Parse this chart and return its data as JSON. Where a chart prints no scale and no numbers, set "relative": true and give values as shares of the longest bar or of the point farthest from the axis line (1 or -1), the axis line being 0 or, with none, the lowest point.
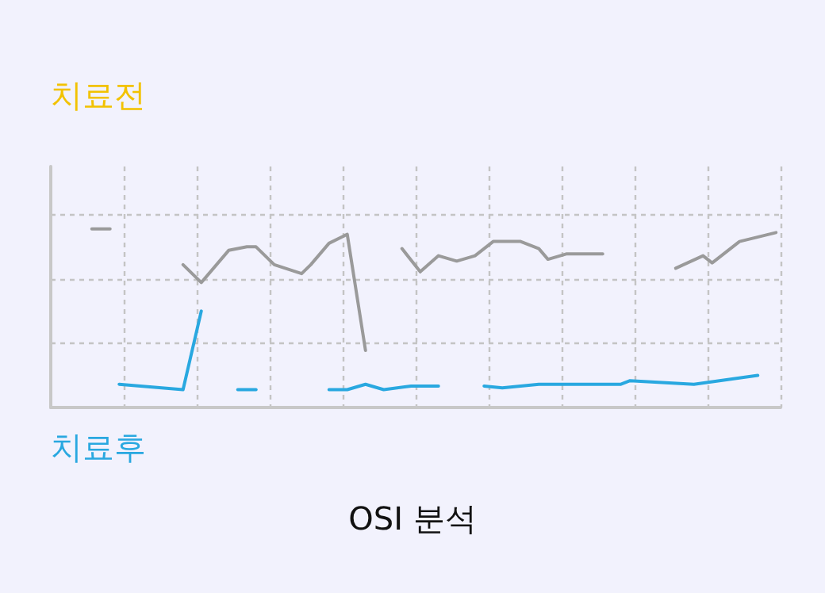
{
  "chart_data": {
    "type": "line",
    "title": "OSI 분석",
    "relative": true,
    "grid": true,
    "line_style": "solid",
    "annotations": [
      "치료전",
      "치료후"
    ],
    "categories": [
      null,
      null,
      null,
      null,
      null,
      null,
      null,
      null,
      null,
      null,
      null,
      null,
      null,
      null,
      null,
      null,
      null,
      null,
      null,
      null,
      null,
      null,
      null,
      null,
      null,
      null,
      null,
      null,
      null,
      null,
      null,
      null,
      null,
      null,
      null,
      null,
      null,
      null,
      null,
      null,
      null,
      null,
      null,
      null,
      null,
      null,
      null,
      null,
      null,
      null,
      null,
      null,
      null,
      null,
      null,
      null,
      null,
      null,
      null,
      null,
      null,
      null,
      null,
      null,
      null,
      null,
      null,
      null,
      null,
      null,
      null,
      null,
      null,
      null,
      null,
      null,
      null,
      null,
      null,
      null
    ],
    "series": [
      {
        "color": "#9a9a9a",
        "values": [
          null,
          null,
          null,
          null,
          1,
          null,
          1,
          null,
          null,
          null,
          null,
          null,
          null,
          null,
          null,
          null,
          null,
          null,
          null,
          null,
          null,
          null,
          null,
          null,
          null,
          null,
          null,
          null,
          null,
          null,
          null,
          null,
          null,
          null,
          null,
          null,
          null,
          null,
          null,
          null,
          null,
          null,
          null,
          null,
          null,
          null,
          null,
          null,
          null,
          null,
          null,
          null,
          null,
          null,
          null,
          null,
          null,
          null,
          null,
          null,
          null,
          null,
          null,
          null,
          null,
          null,
          null,
          null,
          null,
          null,
          null,
          null,
          null,
          null,
          null,
          null,
          null,
          null,
          null,
          null
        ]
      },
      {
        "color": "#9a9a9a",
        "values": [
          null,
          null,
          null,
          null,
          null,
          null,
          null,
          null,
          null,
          null,
          null,
          null,
          null,
          null,
          0.8,
          null,
          0.7,
          null,
          null,
          0.88,
          null,
          0.9,
          0.9,
          null,
          0.8,
          null,
          null,
          0.75,
          0.8,
          null,
          0.92,
          null,
          0.97,
          null,
          0.32,
          null,
          null,
          null,
          null,
          null,
          null,
          null,
          null,
          null,
          null,
          null,
          null,
          null,
          null,
          null,
          null,
          null,
          null,
          null,
          null,
          null,
          null,
          null,
          null,
          null,
          null,
          null,
          null,
          null,
          null,
          null,
          null,
          null,
          null,
          null,
          null,
          null,
          null,
          null,
          null,
          null,
          null,
          null,
          null,
          null
        ]
      },
      {
        "color": "#9a9a9a",
        "values": [
          null,
          null,
          null,
          null,
          null,
          null,
          null,
          null,
          null,
          null,
          null,
          null,
          null,
          null,
          null,
          null,
          null,
          null,
          null,
          null,
          null,
          null,
          null,
          null,
          null,
          null,
          null,
          null,
          null,
          null,
          null,
          null,
          null,
          null,
          null,
          null,
          null,
          null,
          0.89,
          null,
          0.76,
          null,
          0.85,
          null,
          0.82,
          null,
          0.85,
          null,
          0.93,
          null,
          null,
          0.93,
          null,
          0.89,
          0.83,
          null,
          0.86,
          null,
          null,
          null,
          0.86,
          null,
          null,
          null,
          null,
          null,
          null,
          null,
          null,
          null,
          null,
          null,
          null,
          null,
          null,
          null,
          null,
          null,
          null,
          null
        ]
      },
      {
        "color": "#9a9a9a",
        "values": [
          null,
          null,
          null,
          null,
          null,
          null,
          null,
          null,
          null,
          null,
          null,
          null,
          null,
          null,
          null,
          null,
          null,
          null,
          null,
          null,
          null,
          null,
          null,
          null,
          null,
          null,
          null,
          null,
          null,
          null,
          null,
          null,
          null,
          null,
          null,
          null,
          null,
          null,
          null,
          null,
          null,
          null,
          null,
          null,
          null,
          null,
          null,
          null,
          null,
          null,
          null,
          null,
          null,
          null,
          null,
          null,
          null,
          null,
          null,
          null,
          null,
          null,
          null,
          null,
          null,
          null,
          null,
          null,
          0.78,
          null,
          null,
          0.85,
          0.81,
          null,
          null,
          0.93,
          null,
          null,
          null,
          0.98
        ]
      },
      {
        "color": "#29a8e0",
        "values": [
          null,
          null,
          null,
          null,
          null,
          null,
          null,
          0.13,
          null,
          null,
          null,
          null,
          null,
          null,
          0.1,
          null,
          0.54,
          null,
          null,
          null,
          null,
          null,
          null,
          null,
          null,
          null,
          null,
          null,
          null,
          null,
          null,
          null,
          null,
          null,
          null,
          null,
          null,
          null,
          null,
          null,
          null,
          null,
          null,
          null,
          null,
          null,
          null,
          null,
          null,
          null,
          null,
          null,
          null,
          null,
          null,
          null,
          null,
          null,
          null,
          null,
          null,
          null,
          null,
          null,
          null,
          null,
          null,
          null,
          null,
          null,
          null,
          null,
          null,
          null,
          null,
          null,
          null,
          null,
          null,
          null
        ]
      },
      {
        "color": "#29a8e0",
        "values": [
          null,
          null,
          null,
          null,
          null,
          null,
          null,
          null,
          null,
          null,
          null,
          null,
          null,
          null,
          null,
          null,
          null,
          null,
          null,
          null,
          0.1,
          null,
          0.1,
          null,
          null,
          null,
          null,
          null,
          null,
          null,
          null,
          null,
          null,
          null,
          null,
          null,
          null,
          null,
          null,
          null,
          null,
          null,
          null,
          null,
          null,
          null,
          null,
          null,
          null,
          null,
          null,
          null,
          null,
          null,
          null,
          null,
          null,
          null,
          null,
          null,
          null,
          null,
          null,
          null,
          null,
          null,
          null,
          null,
          null,
          null,
          null,
          null,
          null,
          null,
          null,
          null,
          null,
          null,
          null,
          null
        ]
      },
      {
        "color": "#29a8e0",
        "values": [
          null,
          null,
          null,
          null,
          null,
          null,
          null,
          null,
          null,
          null,
          null,
          null,
          null,
          null,
          null,
          null,
          null,
          null,
          null,
          null,
          null,
          null,
          null,
          null,
          null,
          null,
          null,
          null,
          null,
          null,
          0.1,
          null,
          0.1,
          null,
          0.13,
          null,
          0.1,
          null,
          null,
          0.12,
          null,
          null,
          0.12,
          null,
          null,
          null,
          null,
          null,
          null,
          null,
          null,
          null,
          null,
          null,
          null,
          null,
          null,
          null,
          null,
          null,
          null,
          null,
          null,
          null,
          null,
          null,
          null,
          null,
          null,
          null,
          null,
          null,
          null,
          null,
          null,
          null,
          null,
          null,
          null,
          null
        ]
      },
      {
        "color": "#29a8e0",
        "values": [
          null,
          null,
          null,
          null,
          null,
          null,
          null,
          null,
          null,
          null,
          null,
          null,
          null,
          null,
          null,
          null,
          null,
          null,
          null,
          null,
          null,
          null,
          null,
          null,
          null,
          null,
          null,
          null,
          null,
          null,
          null,
          null,
          null,
          null,
          null,
          null,
          null,
          null,
          null,
          null,
          null,
          null,
          null,
          null,
          null,
          null,
          null,
          0.12,
          null,
          0.11,
          null,
          null,
          null,
          0.13,
          null,
          null,
          null,
          null,
          null,
          null,
          null,
          null,
          0.13,
          0.15,
          null,
          null,
          null,
          null,
          null,
          null,
          0.13,
          null,
          null,
          null,
          null,
          null,
          null,
          0.18,
          null,
          null
        ]
      }
    ]
  }
}
